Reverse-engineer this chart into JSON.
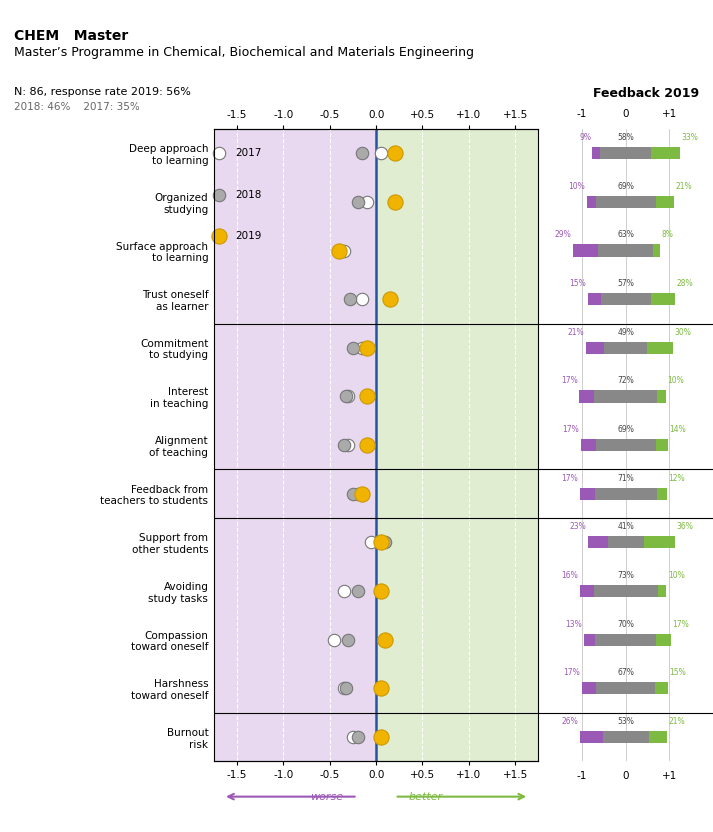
{
  "title_bold": "CHEM   Master",
  "title_sub": "Master’s Programme in Chemical, Biochemical and Materials Engineering",
  "response_info": "N: 86, response rate 2019: 56%",
  "response_info2": "2018: 46%    2017: 35%",
  "feedback_label": "Feedback 2019",
  "categories": [
    "Deep approach\nto learning",
    "Organized\nstudying",
    "Surface approach\nto learning",
    "Trust oneself\nas learner",
    "Commitment\nto studying",
    "Interest\nin teaching",
    "Alignment\nof teaching",
    "Feedback from\nteachers to students",
    "Support from\nother students",
    "Avoiding\nstudy tasks",
    "Compassion\ntoward oneself",
    "Harshness\ntoward oneself",
    "Burnout\nrisk"
  ],
  "group_dividers": [
    4,
    7,
    8,
    12
  ],
  "dot_2017": [
    0.05,
    -0.1,
    -0.35,
    -0.15,
    -0.15,
    -0.3,
    -0.3,
    -0.2,
    -0.05,
    -0.35,
    -0.45,
    -0.35,
    -0.25
  ],
  "dot_2018": [
    -0.15,
    -0.2,
    -0.4,
    -0.28,
    -0.25,
    -0.32,
    -0.35,
    -0.25,
    0.1,
    -0.2,
    -0.3,
    -0.32,
    -0.2
  ],
  "dot_2019": [
    0.2,
    0.2,
    -0.4,
    0.15,
    -0.1,
    -0.1,
    -0.1,
    -0.15,
    0.05,
    0.05,
    0.1,
    0.05,
    0.05
  ],
  "bar_neg_pct": [
    9,
    10,
    29,
    15,
    21,
    17,
    17,
    17,
    23,
    16,
    13,
    17,
    26
  ],
  "bar_mid_pct": [
    58,
    69,
    63,
    57,
    49,
    72,
    69,
    71,
    41,
    73,
    70,
    67,
    53
  ],
  "bar_pos_pct": [
    33,
    21,
    8,
    28,
    30,
    10,
    14,
    12,
    36,
    10,
    17,
    15,
    21
  ],
  "color_2017": "#ffffff",
  "color_2018": "#aaaaaa",
  "color_2019": "#f0b400",
  "color_neg": "#9b59b6",
  "color_mid": "#888888",
  "color_pos": "#7dba42",
  "bg_left": "#e8d8f0",
  "bg_right": "#e0edd0",
  "xlim": [
    -1.75,
    1.75
  ],
  "xticks": [
    -1.5,
    -1.0,
    -0.5,
    0.0,
    0.5,
    1.0,
    1.5
  ],
  "xticklabels": [
    "-1.5",
    "-1.0",
    "-0.5",
    "0.0",
    "+0.5",
    "+1.0",
    "+1.5"
  ]
}
